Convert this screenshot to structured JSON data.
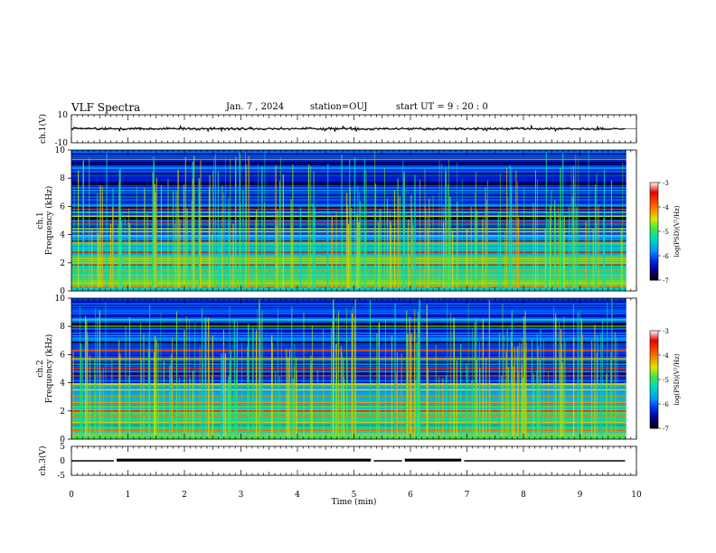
{
  "header": {
    "title": "VLF Spectra",
    "date": "Jan. 7 , 2024",
    "station": "station=OUJ",
    "start": "start UT =  9 : 20 : 0"
  },
  "chart_data": [
    {
      "type": "line",
      "ylabel": "ch.1(V)",
      "ylim": [
        -10,
        10
      ],
      "yticks": [
        "10",
        "-10"
      ],
      "description_values": {
        "baseline": 0,
        "amplitude": "about ±1.5 V"
      }
    },
    {
      "type": "heatmap",
      "ylabel": "ch.1 Frequency (kHz)",
      "ylim": [
        0,
        10
      ],
      "yticks": [
        "0",
        "2",
        "4",
        "6",
        "8",
        "10"
      ],
      "colorbar": {
        "label": "log(PSD)(V²/Hz)",
        "range": [
          -7,
          -3
        ],
        "ticks": [
          "-3",
          "-4",
          "-5",
          "-6",
          "-7"
        ]
      }
    },
    {
      "type": "heatmap",
      "ylabel": "ch.2 Frequency (kHz)",
      "ylim": [
        0,
        10
      ],
      "yticks": [
        "0",
        "2",
        "4",
        "6",
        "8",
        "10"
      ],
      "colorbar": {
        "label": "log(PSD)(V²/Hz)",
        "range": [
          -7,
          -3
        ],
        "ticks": [
          "-3",
          "-4",
          "-5",
          "-6",
          "-7"
        ]
      }
    },
    {
      "type": "line",
      "ylabel": "ch.3(V)",
      "ylim": [
        -5,
        5
      ],
      "yticks": [
        "5",
        "0",
        "-5"
      ],
      "segments": [
        [
          0,
          0.75,
          0
        ],
        [
          0.8,
          5.3,
          0.1
        ],
        [
          5.35,
          5.85,
          0
        ],
        [
          5.9,
          6.9,
          0.1
        ],
        [
          6.95,
          9.8,
          0
        ]
      ]
    }
  ],
  "xaxis": {
    "label": "Time (min)",
    "xlim": [
      0,
      10
    ],
    "ticks": [
      "0",
      "1",
      "2",
      "3",
      "4",
      "5",
      "6",
      "7",
      "8",
      "9",
      "10"
    ]
  }
}
